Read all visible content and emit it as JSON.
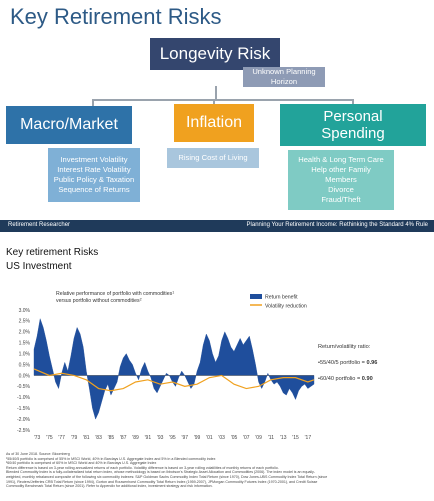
{
  "slide": {
    "title": "Key Retirement Risks",
    "longevity": {
      "label": "Longevity Risk",
      "sub": [
        "Unknown Planning",
        "Horizon"
      ]
    },
    "macro": {
      "label": "Macro/Market",
      "sub": [
        "Investment Volatility",
        "Interest Rate Volatility",
        "Public Policy & Taxation",
        "Sequence of Returns"
      ]
    },
    "inflation": {
      "label": "Inflation",
      "sub": [
        "Rising Cost of Living"
      ]
    },
    "personal": {
      "label_line1": "Personal",
      "label_line2": "Spending",
      "sub": [
        "Health & Long Term Care",
        "Help other Family",
        "Members",
        "Divorce",
        "Fraud/Theft"
      ]
    },
    "footer_left": "Retirement Researcher",
    "footer_right": "Planning Your Retirement Income: Rethinking the Standard 4% Rule",
    "colors": {
      "title": "#2d5a86",
      "longevity": "#34466e",
      "longevity_sub": "#8e9bb5",
      "macro": "#2e72a8",
      "macro_sub": "#7fb0d6",
      "inflation": "#f0a11f",
      "inflation_sub": "#a9c6dd",
      "personal": "#22a39a",
      "personal_sub": "#7fcbc4"
    }
  },
  "captions": {
    "line1": "Key retirement Risks",
    "line2": "US Investment"
  },
  "chart_data": {
    "type": "area",
    "title_line1": "Relative performance of portfolio with commodities",
    "title_line2": "versus portfolio without commodities",
    "title_sup1": "1",
    "title_sup2": "2",
    "x_tick_labels": [
      "'73",
      "'75",
      "'77",
      "'79",
      "'81",
      "'83",
      "'85",
      "'87",
      "'89",
      "'91",
      "'93",
      "'95",
      "'97",
      "'99",
      "'01",
      "'03",
      "'05",
      "'07",
      "'09",
      "'11",
      "'13",
      "'15",
      "'17"
    ],
    "ylim": [
      -2.5,
      3.0
    ],
    "y_ticks": [
      3.0,
      2.5,
      2.0,
      1.5,
      1.0,
      0.5,
      0.0,
      -0.5,
      -1.0,
      -1.5,
      -2.0,
      -2.5
    ],
    "y_tick_labels": [
      "3.0%",
      "2.5%",
      "2.0%",
      "1.5%",
      "1.0%",
      "0.5%",
      "0.0%",
      "-0.5%",
      "-1.0%",
      "-1.5%",
      "-2.0%",
      "-2.5%"
    ],
    "series": [
      {
        "name": "Return benefit",
        "color": "#1f4e9c",
        "style": "area",
        "x": [
          1972.5,
          1973,
          1973.5,
          1974,
          1974.5,
          1975,
          1975.5,
          1976,
          1976.5,
          1977,
          1977.5,
          1978,
          1978.5,
          1979,
          1979.5,
          1980,
          1980.5,
          1981,
          1981.5,
          1982,
          1982.5,
          1983,
          1983.5,
          1984,
          1984.5,
          1985,
          1985.5,
          1986,
          1986.5,
          1987,
          1987.5,
          1988,
          1988.5,
          1989,
          1989.5,
          1990,
          1990.5,
          1991,
          1991.5,
          1992,
          1992.5,
          1993,
          1993.5,
          1994,
          1994.5,
          1995,
          1995.5,
          1996,
          1996.5,
          1997,
          1997.5,
          1998,
          1998.5,
          1999,
          1999.5,
          2000,
          2000.5,
          2001,
          2001.5,
          2002,
          2002.5,
          2003,
          2003.5,
          2004,
          2004.5,
          2005,
          2005.5,
          2006,
          2006.5,
          2007,
          2007.5,
          2008,
          2008.5,
          2009,
          2009.5,
          2010,
          2010.5,
          2011,
          2011.5,
          2012,
          2012.5,
          2013,
          2013.5,
          2014,
          2014.5,
          2015,
          2015.5,
          2016,
          2016.5,
          2017,
          2017.5,
          2018
        ],
        "y": [
          1.2,
          1.8,
          2.6,
          2.2,
          1.6,
          0.9,
          0.3,
          -0.3,
          -0.6,
          0.1,
          0.6,
          0.2,
          0.9,
          1.7,
          2.2,
          1.9,
          1.3,
          0.2,
          -0.6,
          -1.5,
          -2.0,
          -1.7,
          -1.2,
          -0.7,
          -0.4,
          -0.9,
          -0.6,
          -0.3,
          0.4,
          0.8,
          1.0,
          0.7,
          0.5,
          0.1,
          -0.2,
          0.3,
          0.6,
          0.2,
          -0.1,
          -0.6,
          -0.8,
          -0.5,
          -0.2,
          0.1,
          0.0,
          -0.3,
          -0.5,
          -0.1,
          0.2,
          0.0,
          -0.3,
          -0.6,
          -0.4,
          0.2,
          0.6,
          1.4,
          1.9,
          1.6,
          1.0,
          0.6,
          0.9,
          1.6,
          2.0,
          1.7,
          1.3,
          1.1,
          1.4,
          1.7,
          1.4,
          1.6,
          1.8,
          1.2,
          0.5,
          -0.3,
          -0.6,
          -0.3,
          0.1,
          -0.2,
          -0.4,
          -0.3,
          -0.5,
          -0.8,
          -0.9,
          -0.6,
          -0.8,
          -1.1,
          -0.7,
          -0.5,
          -0.4,
          -0.6,
          -0.5,
          -0.4
        ]
      },
      {
        "name": "Volatility reduction",
        "color": "#f0a11f",
        "style": "line",
        "x": [
          1972.5,
          1975,
          1977,
          1979,
          1981,
          1983,
          1985,
          1987,
          1989,
          1991,
          1993,
          1995,
          1997,
          1999,
          2001,
          2003,
          2005,
          2007,
          2009,
          2011,
          2013,
          2015,
          2017,
          2018
        ],
        "y": [
          0.3,
          0.0,
          0.1,
          0.0,
          -0.2,
          -0.6,
          -0.7,
          -0.6,
          -0.3,
          -0.2,
          -0.4,
          -0.3,
          -0.5,
          -0.4,
          -0.1,
          0.0,
          -0.4,
          -0.6,
          -0.5,
          -0.2,
          -0.1,
          -0.1,
          -0.3,
          -0.2
        ]
      }
    ],
    "ratio_title": "Return/volatility ratio:",
    "ratio_items": [
      {
        "label": "•55/40/5 portfolio =",
        "value": "0.96"
      },
      {
        "label": "•60/40 portfolio =",
        "value": "0.90"
      }
    ]
  },
  "notes": [
    "As of 30 June 2018. Source: Bloomberg",
    "¹55/40/5 portfolio is comprised of 55% in MSCI World, 40% in Barclays U.S. Aggregate Index and 5% in a Blended commodity index",
    "²60/40 portfolio is comprised of 60% in MSCI World and 40% in Barclays U.S. Aggregate Index",
    "Return difference is based on 3-year rolling annualized returns of each portfolio. Volatility difference is based on 3-year rolling volatilities of monthly returns of each portfolio.",
    "Blended Commodity Index is a fully-collateralized total return index, whose methodology is based on Ibbotson's Strategic Asset Allocation and Commodities (2006). The index model is an equally-",
    "weighted, monthly rebalanced composite of the following six commodity indexes: S&P Goldman Sachs Commodity Index Total Return (since 1970), Dow Jones-UBS Commodity Index Total Return (since",
    "1991), Reuters/Jefferies CRB Total Return (since 1994), Gorton and Rouwenhorst Commodity Total Return Index (1959-2007), JPMorgan Commodity Futures Index (1970-2001), and Credit Suisse",
    "Commodity Benchmark Total Return (since 2001). Refer to Appendix for additional index, investment strategy and risk information."
  ]
}
